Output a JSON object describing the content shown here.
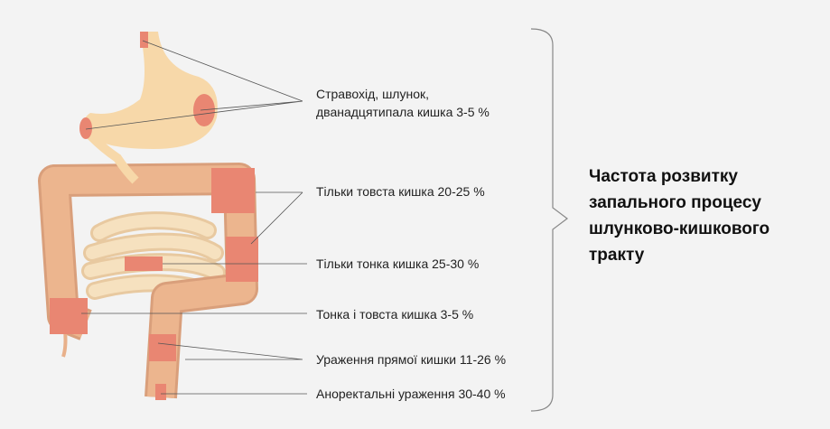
{
  "labels": [
    {
      "lines": [
        "Стравохід, шлунок,",
        "дванадцятипала кишка 3-5 %"
      ]
    },
    {
      "lines": [
        "Тільки товста кишка 20-25 %"
      ]
    },
    {
      "lines": [
        "Тільки тонка кишка 25-30 %"
      ]
    },
    {
      "lines": [
        "Тонка і товста кишка 3-5 %"
      ]
    },
    {
      "lines": [
        "Ураження прямої кишки 11-26 %"
      ]
    },
    {
      "lines": [
        "Аноректальні ураження 30-40 %"
      ]
    }
  ],
  "title": {
    "lines": [
      "Частота розвитку",
      "запального процесу",
      "шлунково-кишкового",
      "тракту"
    ]
  }
}
